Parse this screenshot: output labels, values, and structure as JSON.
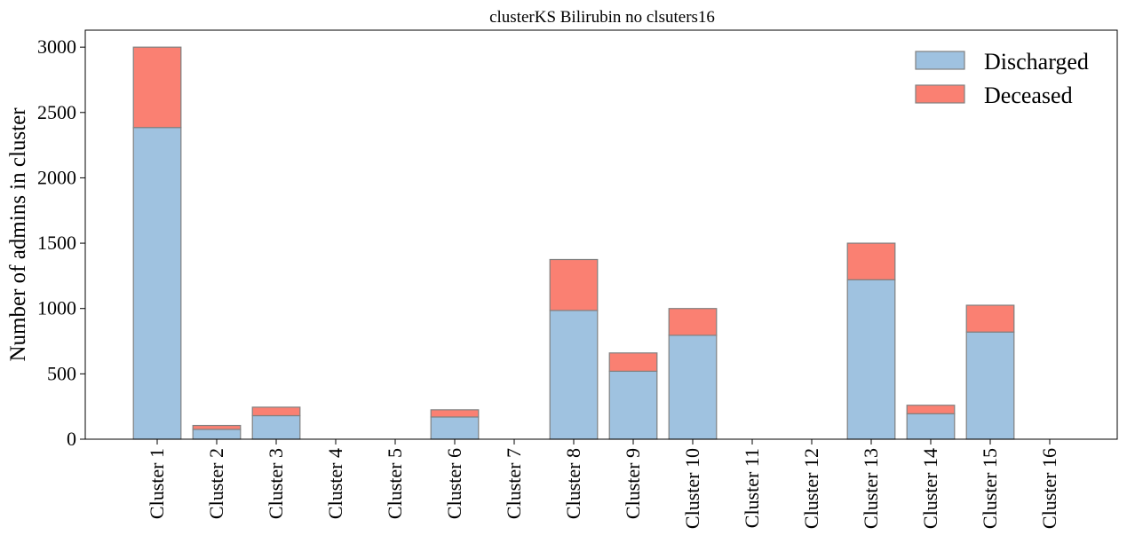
{
  "chart_data": {
    "type": "bar",
    "stacked": true,
    "title": "clusterKS Bilirubin no clsuters16",
    "xlabel": "",
    "ylabel": "Number of admins in cluster",
    "ylim": [
      0,
      3130
    ],
    "yticks": [
      0,
      500,
      1000,
      1500,
      2000,
      2500,
      3000
    ],
    "grid": false,
    "legend_position": "top-right",
    "categories": [
      "Cluster 1",
      "Cluster 2",
      "Cluster 3",
      "Cluster 4",
      "Cluster 5",
      "Cluster 6",
      "Cluster 7",
      "Cluster 8",
      "Cluster 9",
      "Cluster 10",
      "Cluster 11",
      "Cluster 12",
      "Cluster 13",
      "Cluster 14",
      "Cluster 15",
      "Cluster 16"
    ],
    "series": [
      {
        "name": "Discharged",
        "color": "#9fc2e0",
        "values": [
          2385,
          75,
          180,
          0,
          0,
          170,
          0,
          985,
          520,
          795,
          0,
          0,
          1220,
          195,
          820,
          0
        ]
      },
      {
        "name": "Deceased",
        "color": "#fa8072",
        "values": [
          615,
          30,
          65,
          0,
          0,
          55,
          0,
          390,
          140,
          205,
          0,
          0,
          280,
          65,
          205,
          0
        ]
      }
    ]
  }
}
